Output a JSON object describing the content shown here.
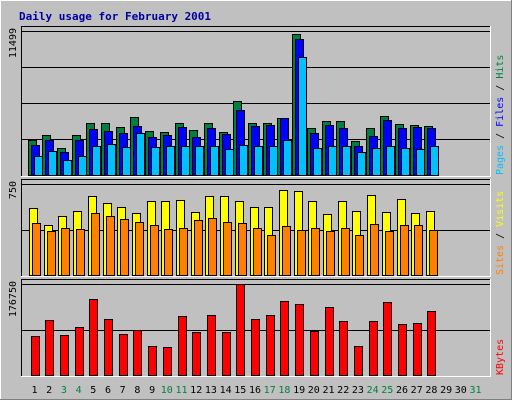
{
  "chart_data": {
    "type": "bar",
    "title": "Daily usage for February 2001",
    "categories": [
      "1",
      "2",
      "3",
      "4",
      "5",
      "6",
      "7",
      "8",
      "9",
      "10",
      "11",
      "12",
      "13",
      "14",
      "15",
      "16",
      "17",
      "18",
      "19",
      "20",
      "21",
      "22",
      "23",
      "24",
      "25",
      "26",
      "27",
      "28",
      "29",
      "30",
      "31"
    ],
    "weekend_days": [
      3,
      4,
      10,
      11,
      17,
      18,
      24,
      25,
      31
    ],
    "panels": [
      {
        "id": "hits",
        "max_label": "11499",
        "ymax": 11499,
        "grid_lines": [
          0.25,
          0.5,
          0.75,
          1.0
        ],
        "right_label_parts": [
          {
            "text": "Pages",
            "color": "#00c0ff"
          },
          {
            "text": " / ",
            "color": "#000000"
          },
          {
            "text": "Files",
            "color": "#0000ff"
          },
          {
            "text": " / ",
            "color": "#000000"
          },
          {
            "text": "Hits",
            "color": "#008040"
          }
        ],
        "series": [
          {
            "name": "Hits",
            "color": "#008040",
            "values": [
              2770,
              3170,
              2140,
              3170,
              4190,
              4190,
              3820,
              4650,
              3520,
              3430,
              4190,
              3600,
              4190,
              3430,
              5880,
              4190,
              4190,
              4540,
              11270,
              3770,
              4280,
              4280,
              2740,
              3770,
              4720,
              4110,
              4030,
              3940,
              null,
              null,
              null
            ]
          },
          {
            "name": "Files",
            "color": "#0000ff",
            "values": [
              2400,
              2830,
              1800,
              2830,
              3680,
              3510,
              3340,
              3930,
              3070,
              3170,
              3860,
              3000,
              3770,
              3250,
              5220,
              3940,
              4030,
              4540,
              10850,
              3340,
              4030,
              3770,
              2310,
              3080,
              4400,
              3770,
              3800,
              3770,
              null,
              null,
              null
            ]
          },
          {
            "name": "Pages",
            "color": "#00c0ff",
            "values": [
              1540,
              1880,
              1190,
              1540,
              2310,
              2500,
              2200,
              3340,
              2230,
              2320,
              2310,
              2310,
              2310,
              2060,
              2400,
              2310,
              2310,
              2830,
              9420,
              2140,
              2310,
              2310,
              1800,
              2140,
              2310,
              2140,
              2050,
              2310,
              null,
              null,
              null
            ]
          }
        ]
      },
      {
        "id": "visits",
        "max_label": "750",
        "ymax": 750,
        "grid_lines": [
          0.5,
          1.0
        ],
        "right_label_parts": [
          {
            "text": "Sites",
            "color": "#ff8000"
          },
          {
            "text": " / ",
            "color": "#000000"
          },
          {
            "text": "Visits",
            "color": "#ffff00"
          }
        ],
        "series": [
          {
            "name": "Visits",
            "color": "#ffff00",
            "values": [
              550,
              410,
              490,
              530,
              650,
              590,
              560,
              510,
              610,
              610,
              620,
              520,
              650,
              650,
              610,
              560,
              560,
              700,
              690,
              610,
              500,
              610,
              530,
              660,
              520,
              630,
              510,
              530,
              null,
              null,
              null
            ]
          },
          {
            "name": "Sites",
            "color": "#ff8000",
            "values": [
              430,
              360,
              390,
              380,
              510,
              490,
              460,
              440,
              410,
              380,
              390,
              450,
              470,
              440,
              430,
              390,
              330,
              400,
              370,
              390,
              360,
              390,
              330,
              420,
              360,
              410,
              410,
              370,
              null,
              null,
              null
            ]
          }
        ]
      },
      {
        "id": "kbytes",
        "max_label": "176750",
        "ymax": 176750,
        "grid_lines": [
          0.5,
          1.0
        ],
        "right_label_parts": [
          {
            "text": "KBytes",
            "color": "#ff0000"
          }
        ],
        "series": [
          {
            "name": "KBytes",
            "color": "#ff0000",
            "values": [
              74900,
              106000,
              77500,
              93000,
              148000,
              109000,
              78800,
              88000,
              55400,
              54100,
              115000,
              84000,
              117000,
              84000,
              176750,
              109000,
              117000,
              143000,
              138000,
              85300,
              132000,
              104000,
              56700,
              104000,
              142000,
              100000,
              101000,
              125000,
              null,
              null,
              null
            ]
          }
        ]
      }
    ]
  }
}
